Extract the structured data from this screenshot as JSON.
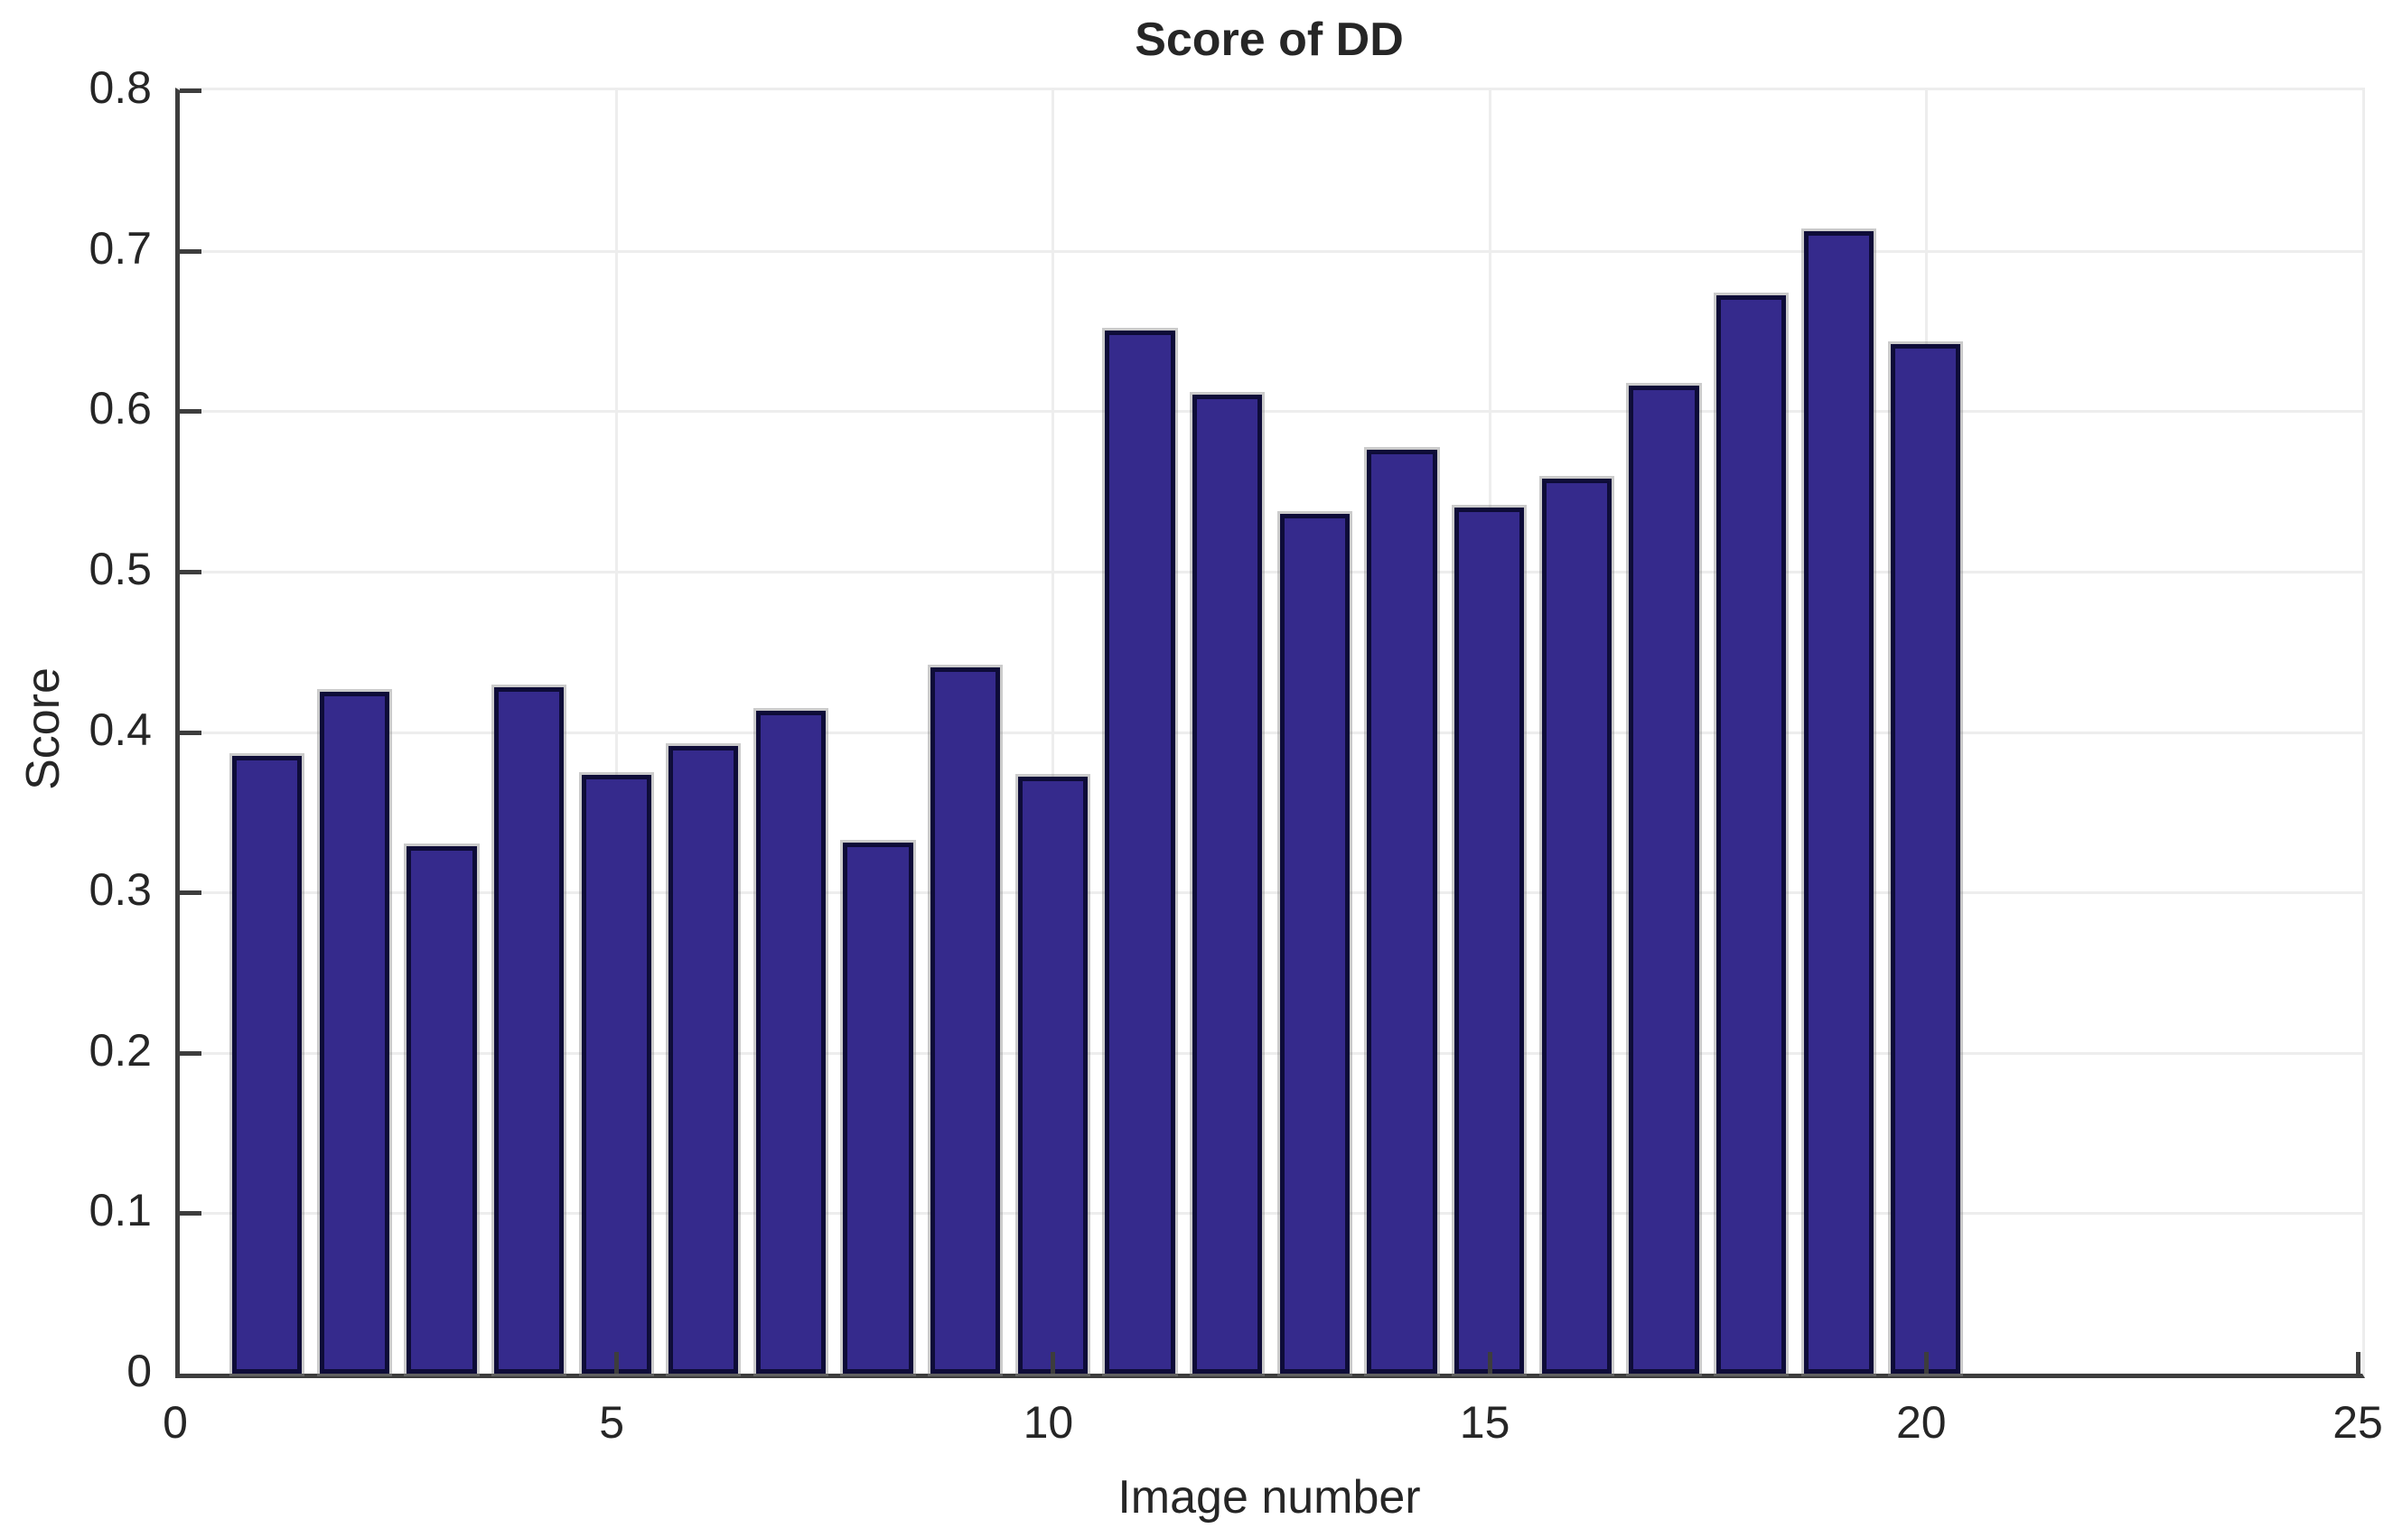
{
  "title": "Score of DD",
  "chart_data": {
    "type": "bar",
    "title": "Score of DD",
    "xlabel": "Image number",
    "ylabel": "Score",
    "x": [
      1,
      2,
      3,
      4,
      5,
      6,
      7,
      8,
      9,
      10,
      11,
      12,
      13,
      14,
      15,
      16,
      17,
      18,
      19,
      20
    ],
    "values": [
      0.385,
      0.425,
      0.329,
      0.428,
      0.373,
      0.391,
      0.413,
      0.331,
      0.44,
      0.372,
      0.65,
      0.61,
      0.536,
      0.576,
      0.54,
      0.558,
      0.616,
      0.672,
      0.712,
      0.642
    ],
    "xlim": [
      0,
      25
    ],
    "ylim": [
      0,
      0.8
    ],
    "xticks": [
      0,
      5,
      10,
      15,
      20,
      25
    ],
    "yticks": [
      0,
      0.1,
      0.2,
      0.3,
      0.4,
      0.5,
      0.6,
      0.7,
      0.8
    ],
    "bar_width_units": 0.8,
    "grid": true,
    "legend": null,
    "bar_color": "#352a8c",
    "bar_edge_color": "#0e0c38",
    "gridline_color": "#ededed",
    "axis_color": "#3d3d3d",
    "text_color": "#262626",
    "background_color": "#ffffff"
  }
}
